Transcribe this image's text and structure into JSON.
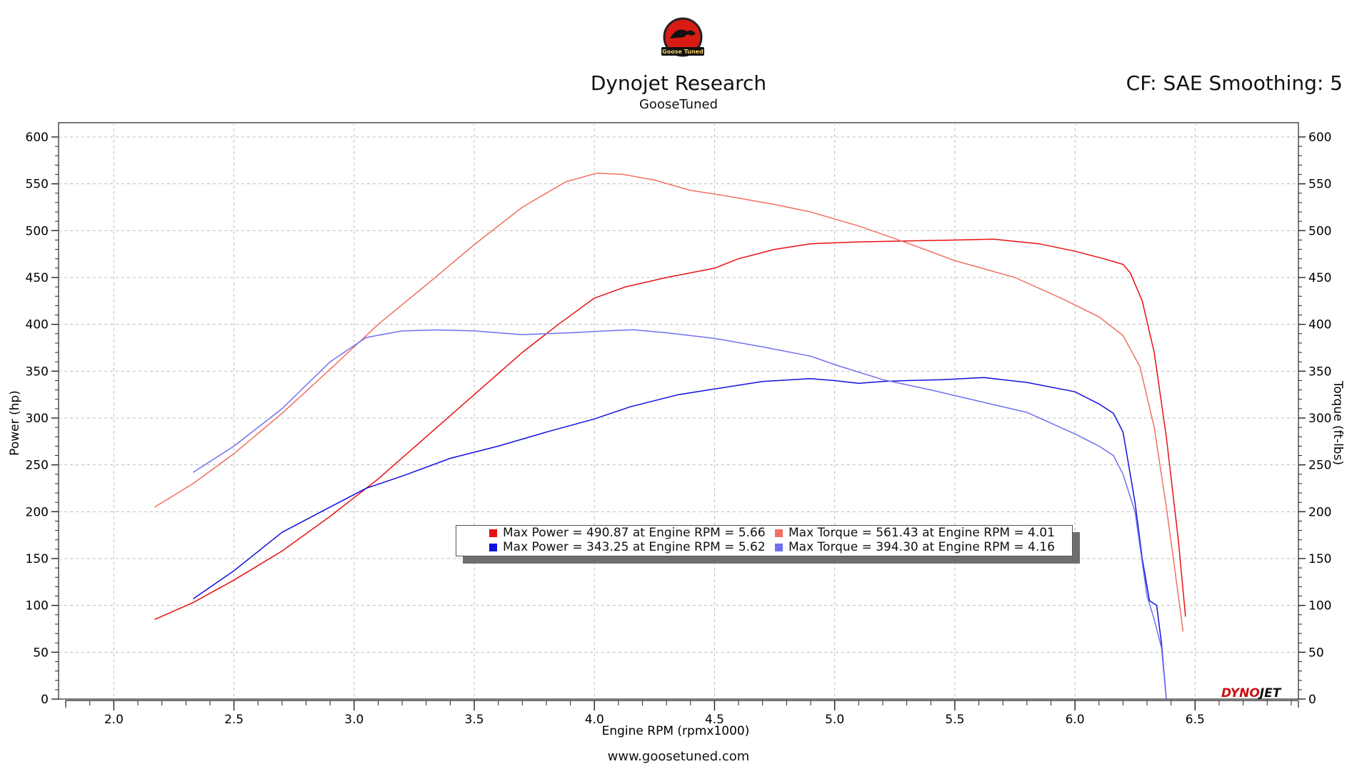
{
  "header": {
    "title": "Dynojet Research",
    "subtitle": "GooseTuned",
    "cf_info": "CF: SAE Smoothing: 5",
    "logo_text": "Goose Tuned"
  },
  "footer": {
    "url": "www.goosetuned.com"
  },
  "brand": {
    "part1": "DYNO",
    "part2": "JET"
  },
  "legend": {
    "entries": [
      {
        "label": "Max Power = 490.87 at Engine RPM = 5.66",
        "color": "#e81010"
      },
      {
        "label": "Max Torque = 561.43 at Engine RPM = 4.01",
        "color": "#f07060"
      },
      {
        "label": "Max Power = 343.25 at Engine RPM = 5.62",
        "color": "#1010e0"
      },
      {
        "label": "Max Torque = 394.30 at Engine RPM = 4.16",
        "color": "#7070f0"
      }
    ]
  },
  "chart_data": {
    "type": "line",
    "xlabel": "Engine RPM (rpmx1000)",
    "ylabel": "Power (hp)",
    "y2label": "Torque (ft-lbs)",
    "xlim": [
      1.77,
      6.93
    ],
    "ylim": [
      0,
      600
    ],
    "y2lim": [
      0,
      600
    ],
    "xticks": [
      "2.0",
      "2.5",
      "3.0",
      "3.5",
      "4.0",
      "4.5",
      "5.0",
      "5.5",
      "6.0",
      "6.5"
    ],
    "yticks": [
      "0",
      "50",
      "100",
      "150",
      "200",
      "250",
      "300",
      "350",
      "400",
      "450",
      "500",
      "550",
      "600"
    ],
    "grid": true,
    "series": [
      {
        "axis": "left",
        "color": "#e81010",
        "x": [
          2.17,
          2.33,
          2.5,
          2.7,
          2.9,
          3.1,
          3.3,
          3.5,
          3.7,
          3.85,
          4.0,
          4.13,
          4.3,
          4.5,
          4.6,
          4.75,
          4.9,
          5.1,
          5.3,
          5.5,
          5.66,
          5.85,
          6.0,
          6.12,
          6.2,
          6.23,
          6.28,
          6.33,
          6.38,
          6.43,
          6.46
        ],
        "y": [
          85,
          103,
          127,
          158,
          195,
          235,
          280,
          325,
          370,
          400,
          428,
          440,
          450,
          460,
          470,
          480,
          486,
          488,
          489,
          490,
          490.87,
          486,
          478,
          470,
          464,
          455,
          425,
          370,
          280,
          170,
          88
        ]
      },
      {
        "axis": "right",
        "color": "#f07060",
        "x": [
          2.17,
          2.33,
          2.5,
          2.7,
          2.9,
          3.1,
          3.3,
          3.5,
          3.7,
          3.88,
          4.01,
          4.12,
          4.25,
          4.4,
          4.55,
          4.75,
          4.9,
          5.1,
          5.3,
          5.5,
          5.75,
          5.95,
          6.1,
          6.2,
          6.27,
          6.33,
          6.38,
          6.42,
          6.45
        ],
        "y": [
          205,
          230,
          262,
          305,
          352,
          400,
          442,
          485,
          525,
          552,
          561.43,
          560,
          554,
          543,
          537,
          528,
          520,
          505,
          487,
          468,
          450,
          427,
          408,
          388,
          355,
          290,
          205,
          130,
          72
        ]
      },
      {
        "axis": "left",
        "color": "#1010e0",
        "x": [
          2.33,
          2.5,
          2.7,
          2.9,
          3.05,
          3.2,
          3.4,
          3.6,
          3.8,
          4.0,
          4.15,
          4.35,
          4.5,
          4.7,
          4.9,
          5.0,
          5.1,
          5.2,
          5.3,
          5.45,
          5.62,
          5.8,
          6.0,
          6.1,
          6.16,
          6.2,
          6.25,
          6.28,
          6.31,
          6.34,
          6.36,
          6.38
        ],
        "y": [
          107,
          137,
          178,
          205,
          225,
          238,
          257,
          270,
          285,
          299,
          312,
          325,
          331,
          339,
          342,
          340,
          337,
          339,
          340,
          341,
          343.25,
          338,
          328,
          315,
          305,
          285,
          210,
          150,
          105,
          100,
          60,
          0
        ]
      },
      {
        "axis": "right",
        "color": "#7070f0",
        "x": [
          2.33,
          2.5,
          2.7,
          2.9,
          3.05,
          3.2,
          3.35,
          3.5,
          3.7,
          3.9,
          4.05,
          4.16,
          4.3,
          4.5,
          4.7,
          4.9,
          5.0,
          5.2,
          5.4,
          5.6,
          5.8,
          6.0,
          6.1,
          6.16,
          6.2,
          6.25,
          6.3,
          6.33,
          6.36,
          6.38
        ],
        "y": [
          242,
          270,
          310,
          360,
          386,
          393,
          394,
          393,
          389,
          391,
          393,
          394.3,
          391,
          385,
          376,
          366,
          357,
          341,
          330,
          318,
          306,
          283,
          270,
          260,
          240,
          200,
          110,
          85,
          55,
          0
        ]
      }
    ]
  }
}
